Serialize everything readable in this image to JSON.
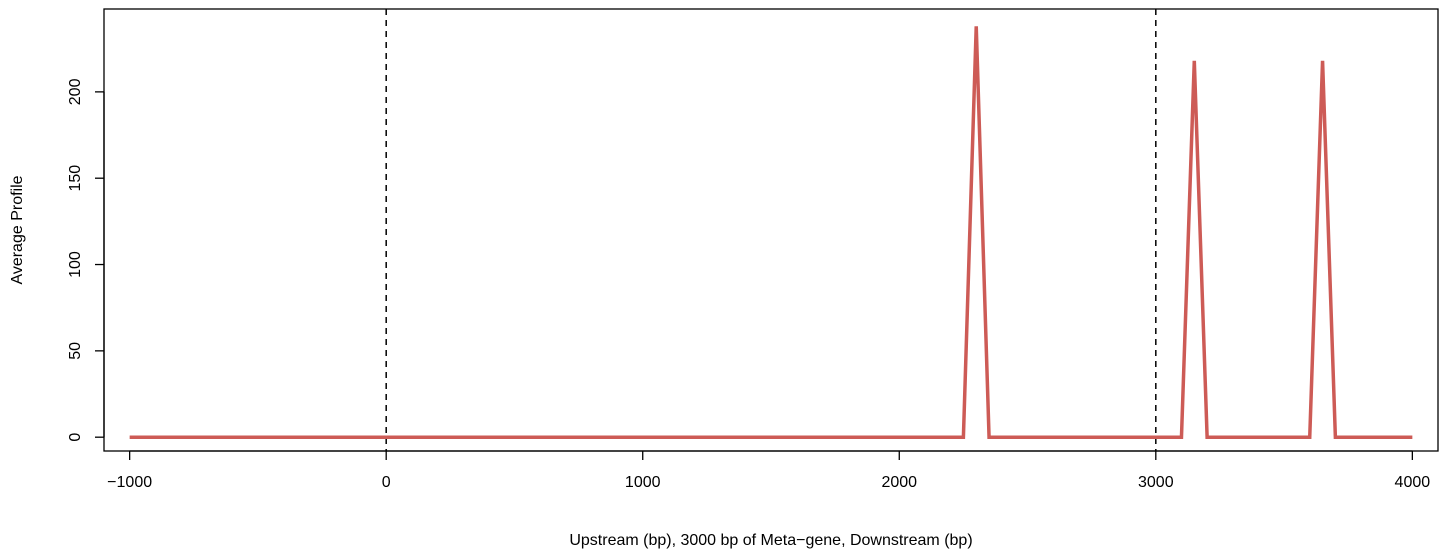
{
  "chart_data": {
    "type": "line",
    "title": "",
    "xlabel": "Upstream (bp), 3000 bp of Meta−gene, Downstream (bp)",
    "ylabel": "Average Profile",
    "xlim": [
      -1100,
      4100
    ],
    "ylim": [
      -8,
      248
    ],
    "x_ticks": [
      -1000,
      0,
      1000,
      2000,
      3000,
      4000
    ],
    "x_tick_labels": [
      "−1000",
      "0",
      "1000",
      "2000",
      "3000",
      "4000"
    ],
    "y_ticks": [
      0,
      50,
      100,
      150,
      200
    ],
    "y_tick_labels": [
      "0",
      "50",
      "100",
      "150",
      "200"
    ],
    "grid": false,
    "vlines": [
      0,
      3000
    ],
    "series": [
      {
        "color": "#cd5b56",
        "x": [
          -1000,
          2250,
          2300,
          2350,
          3100,
          3150,
          3200,
          3600,
          3650,
          3700,
          4000
        ],
        "y": [
          0,
          0,
          238,
          0,
          0,
          218,
          0,
          0,
          218,
          0,
          0
        ]
      }
    ]
  }
}
